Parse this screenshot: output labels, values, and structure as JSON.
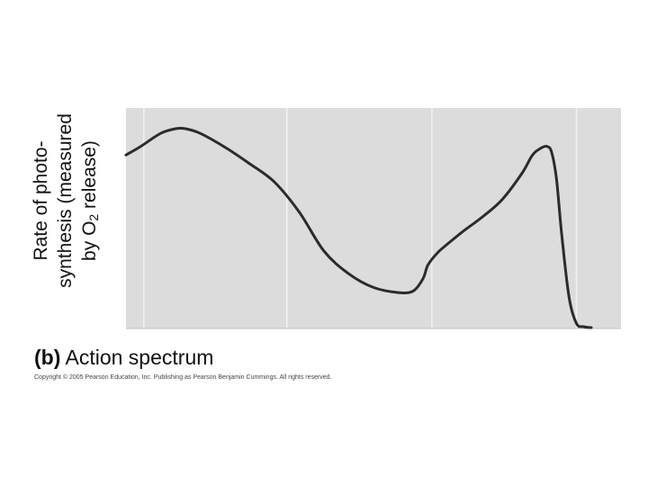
{
  "chart_data": {
    "type": "line",
    "title": "",
    "ylabel_lines": [
      "Rate of photo-",
      "synthesis (measured",
      "by O"
    ],
    "ylabel_subscript": "2",
    "ylabel_tail": " release)",
    "xlim": [
      0,
      100
    ],
    "ylim": [
      0,
      100
    ],
    "grid": true,
    "gridlines_x": [
      3.6,
      32.5,
      61.8,
      91.0
    ],
    "series": [
      {
        "x": [
          0,
          3,
          7,
          10,
          12,
          15,
          20,
          25,
          30,
          35,
          40,
          45,
          50,
          55,
          58,
          60,
          61,
          63,
          65,
          68,
          72,
          76,
          80,
          82,
          83.5,
          85,
          86,
          87,
          88,
          89.5,
          91,
          92.4,
          94
        ],
        "y": [
          78.7,
          82.6,
          88.5,
          90.6,
          90.6,
          88.5,
          82.2,
          74.7,
          66.4,
          52.8,
          35.1,
          24.8,
          18.6,
          16.3,
          17.0,
          22.6,
          28.8,
          34.5,
          38.4,
          43.9,
          50.6,
          58.5,
          70.4,
          78.3,
          81.4,
          82.6,
          79.8,
          67.2,
          43.1,
          14.2,
          2.3,
          0.8,
          0.4
        ]
      }
    ],
    "colors": {
      "line": "#2b2b2b",
      "plot_bg": "#dcdcdc",
      "grid": "#f2f2f2"
    }
  },
  "caption": {
    "label": "(b)",
    "text": " Action spectrum"
  },
  "copyright": "Copyright © 2005 Pearson Education, Inc. Publishing as Pearson Benjamin Cummings. All rights reserved."
}
